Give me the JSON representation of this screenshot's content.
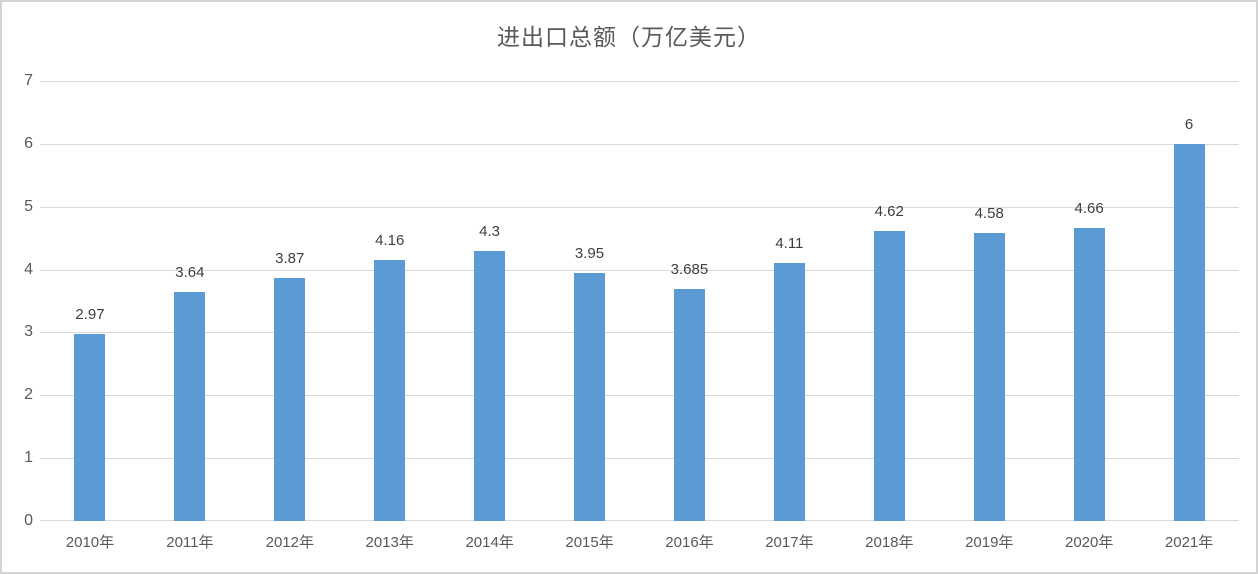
{
  "chart_data": {
    "type": "bar",
    "title": "进出口总额（万亿美元）",
    "categories": [
      "2010年",
      "2011年",
      "2012年",
      "2013年",
      "2014年",
      "2015年",
      "2016年",
      "2017年",
      "2018年",
      "2019年",
      "2020年",
      "2021年"
    ],
    "values": [
      2.97,
      3.64,
      3.87,
      4.16,
      4.3,
      3.95,
      3.685,
      4.11,
      4.62,
      4.58,
      4.66,
      6
    ],
    "data_labels": [
      "2.97",
      "3.64",
      "3.87",
      "4.16",
      "4.3",
      "3.95",
      "3.685",
      "4.11",
      "4.62",
      "4.58",
      "4.66",
      "6"
    ],
    "xlabel": "",
    "ylabel": "",
    "ylim": [
      0,
      7
    ],
    "yticks": [
      0,
      1,
      2,
      3,
      4,
      5,
      6,
      7
    ],
    "grid": true,
    "legend": false,
    "colors": {
      "bar": "#5b9bd5",
      "gridline": "#d9d9d9",
      "axis_text": "#595959",
      "title_text": "#595959",
      "data_label_text": "#3f3f3f",
      "background": "#ffffff",
      "frame_border": "#d3d3d3"
    }
  }
}
